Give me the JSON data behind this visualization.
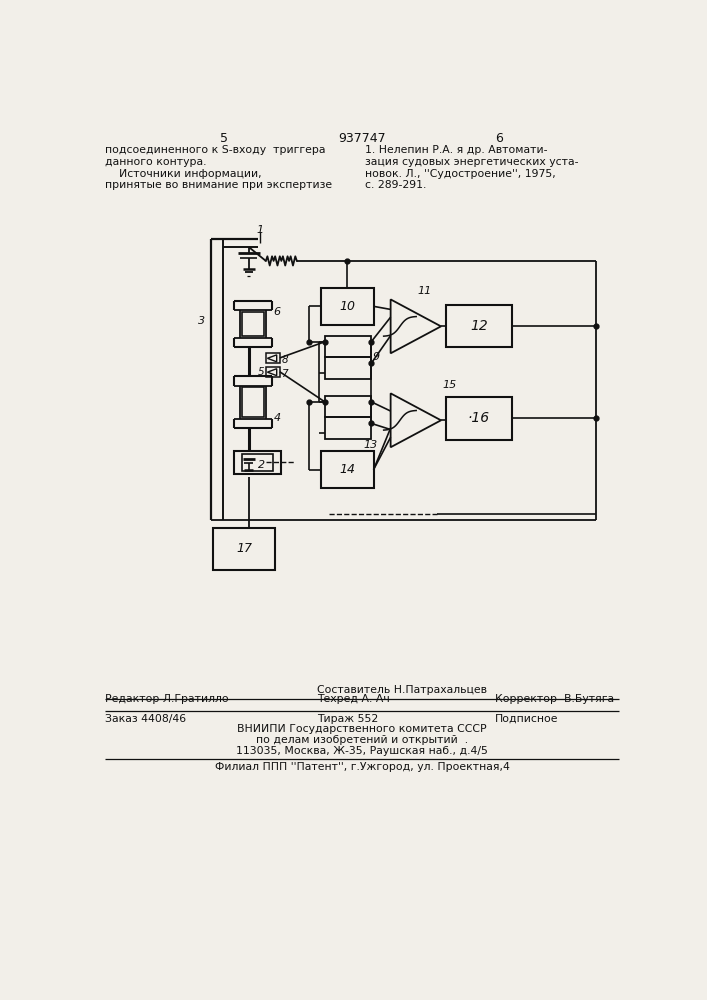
{
  "page_number_left": "5",
  "page_number_center": "937747",
  "page_number_right": "6",
  "text_left": "подсоединенного к S-входу  триггера\nданного контура.\n    Источники информации,\nпринятые во внимание при экспертизе",
  "text_right": "1. Нелепин Р.А. я др. Автомати-\nзация судовых энергетических уста-\nновок. Л., ''Судостроение'', 1975,\nс. 289-291.",
  "footer_line1_center_top": "Составитель Н.Патрахальцев",
  "footer_line1_left": "Редактор Л.Гратилло",
  "footer_line1_center_bot": "Техред А. Ач",
  "footer_line1_right": "Корректор  В.Бутяга",
  "footer_line2_left": "Заказ 4408/46",
  "footer_line2_center": "Тираж 552",
  "footer_line2_right": "Подписное",
  "footer_line3": "ВНИИПИ Государственного комитета СССР",
  "footer_line4": "по делам изобретений и открытий  .",
  "footer_line5": "113035, Москва, Ж-35, Раушская наб., д.4/5",
  "footer_last": "Филиал ППП ''Патент'', г.Ужгород, ул. Проектная,4",
  "bg_color": "#f2efe9",
  "line_color": "#111111"
}
